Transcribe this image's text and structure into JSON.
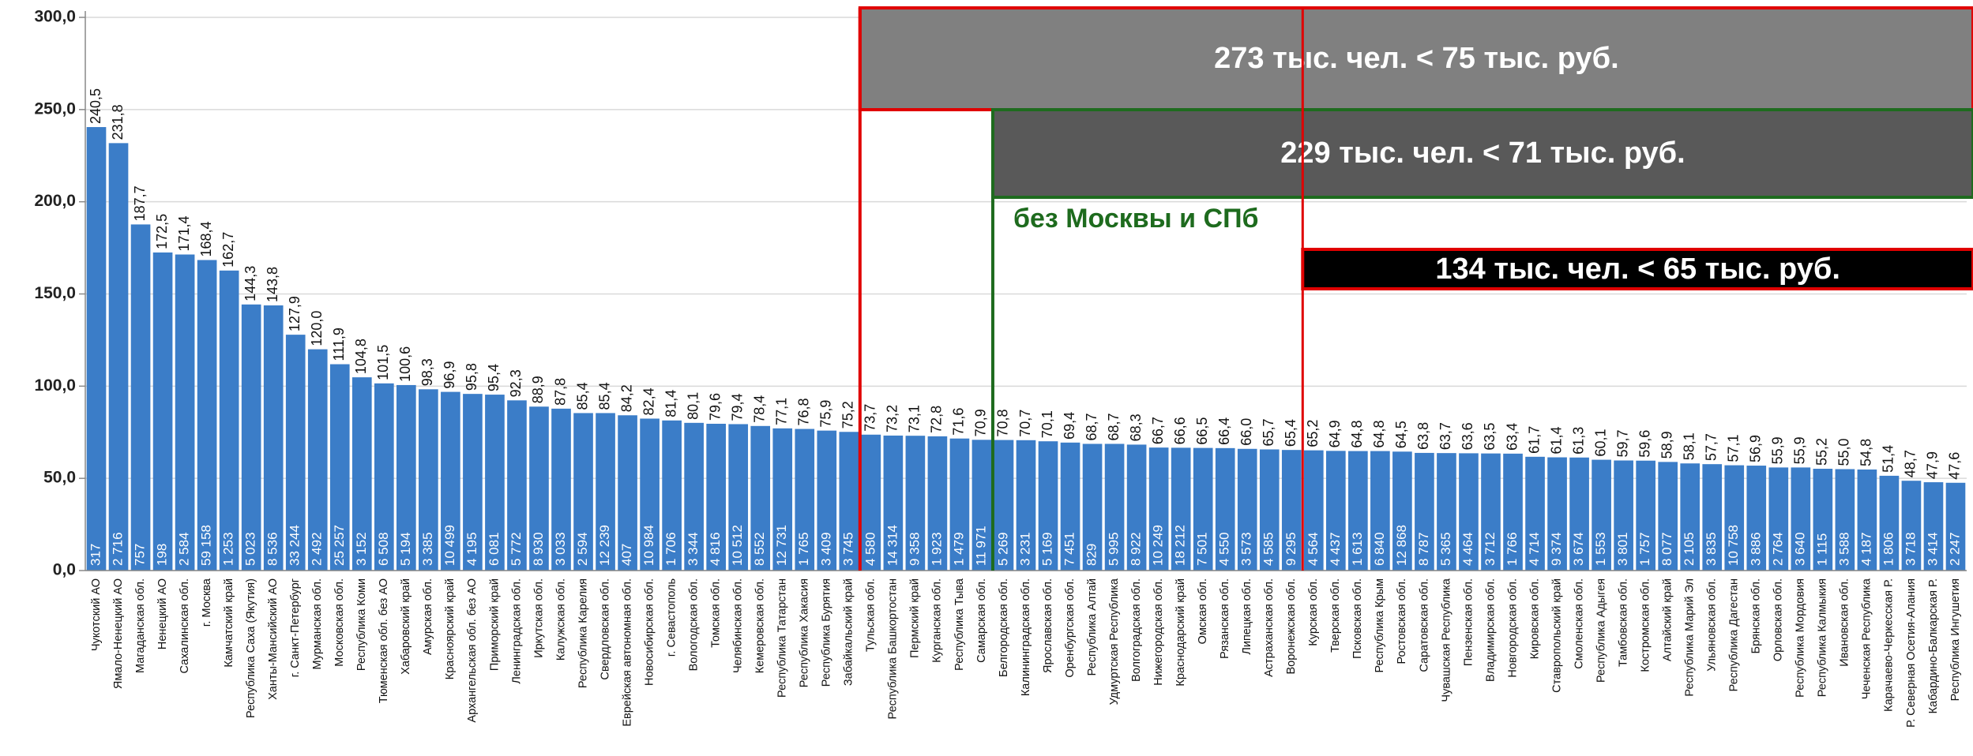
{
  "chart_data": {
    "type": "bar",
    "color": "#3b7dc8",
    "grid": true,
    "ylim": [
      0,
      300
    ],
    "yticks": [
      {
        "value": 0,
        "label": "0,0"
      },
      {
        "value": 50,
        "label": "50,0"
      },
      {
        "value": 100,
        "label": "100,0"
      },
      {
        "value": 150,
        "label": "150,0"
      },
      {
        "value": 200,
        "label": "200,0"
      },
      {
        "value": 250,
        "label": "250,0"
      },
      {
        "value": 300,
        "label": "300,0"
      }
    ],
    "categories": [
      "Чукотский АО",
      "Ямало-Ненецкий АО",
      "Магаданская обл.",
      "Ненецкий АО",
      "Сахалинская обл.",
      "г. Москва",
      "Камчатский край",
      "Республика Саха (Якутия)",
      "Ханты-Мансийский АО",
      "г. Санкт-Петербург",
      "Мурманская обл.",
      "Московская обл.",
      "Республика Коми",
      "Тюменская обл. без АО",
      "Хабаровский край",
      "Амурская обл.",
      "Красноярский край",
      "Архангельская обл. без АО",
      "Приморский край",
      "Ленинградская обл.",
      "Иркутская обл.",
      "Калужская обл.",
      "Республика Карелия",
      "Свердловская обл.",
      "Еврейская автономная обл.",
      "Новосибирская обл.",
      "г. Севастополь",
      "Вологодская обл.",
      "Томская обл.",
      "Челябинская обл.",
      "Кемеровская обл.",
      "Республика Татарстан",
      "Республика Хакасия",
      "Республика Бурятия",
      "Забайкальский край",
      "Тульская обл.",
      "Республика Башкортостан",
      "Пермский край",
      "Курганская обл.",
      "Республика Тыва",
      "Самарская обл.",
      "Белгородская обл.",
      "Калининградская обл.",
      "Ярославская обл.",
      "Оренбургская обл.",
      "Республика Алтай",
      "Удмуртская Республика",
      "Волгоградская обл.",
      "Нижегородская обл.",
      "Краснодарский край",
      "Омская обл.",
      "Рязанская обл.",
      "Липецкая обл.",
      "Астраханская обл.",
      "Воронежская обл.",
      "Курская обл.",
      "Тверская обл.",
      "Псковская обл.",
      "Республика Крым",
      "Ростовская обл.",
      "Саратовская обл.",
      "Чувашская Республика",
      "Пензенская обл.",
      "Владимирская обл.",
      "Новгородская обл.",
      "Кировская обл.",
      "Ставропольский край",
      "Смоленская обл.",
      "Республика Адыгея",
      "Тамбовская обл.",
      "Костромская обл.",
      "Алтайский край",
      "Республика Марий Эл",
      "Ульяновская обл.",
      "Республика Дагестан",
      "Брянская обл.",
      "Орловская обл.",
      "Республика Мордовия",
      "Республика Калмыкия",
      "Ивановская обл.",
      "Чеченская Республика",
      "Карачаево-Черкесская Р.",
      "Р. Северная Осетия-Алания",
      "Кабардино-Балкарская Р.",
      "Республика Ингушетия"
    ],
    "values": [
      240.5,
      231.8,
      187.7,
      172.5,
      171.4,
      168.4,
      162.7,
      144.3,
      143.8,
      127.9,
      120.0,
      111.9,
      104.8,
      101.5,
      100.6,
      98.3,
      96.9,
      95.8,
      95.4,
      92.3,
      88.9,
      87.8,
      85.4,
      85.4,
      84.2,
      82.4,
      81.4,
      80.1,
      79.6,
      79.4,
      78.4,
      77.1,
      76.8,
      75.9,
      75.2,
      73.7,
      73.2,
      73.1,
      72.8,
      71.6,
      70.9,
      70.8,
      70.7,
      70.1,
      69.4,
      68.7,
      68.7,
      68.3,
      66.7,
      66.6,
      66.5,
      66.4,
      66.0,
      65.7,
      65.4,
      65.2,
      64.9,
      64.8,
      64.8,
      64.5,
      63.8,
      63.7,
      63.6,
      63.5,
      63.4,
      61.7,
      61.4,
      61.3,
      60.1,
      59.7,
      59.6,
      58.9,
      58.1,
      57.7,
      57.1,
      56.9,
      55.9,
      55.9,
      55.2,
      55.0,
      54.8,
      51.4,
      48.7,
      47.9,
      47.6
    ],
    "value_labels": [
      "240,5",
      "231,8",
      "187,7",
      "172,5",
      "171,4",
      "168,4",
      "162,7",
      "144,3",
      "143,8",
      "127,9",
      "120,0",
      "111,9",
      "104,8",
      "101,5",
      "100,6",
      "98,3",
      "96,9",
      "95,8",
      "95,4",
      "92,3",
      "88,9",
      "87,8",
      "85,4",
      "85,4",
      "84,2",
      "82,4",
      "81,4",
      "80,1",
      "79,6",
      "79,4",
      "78,4",
      "77,1",
      "76,8",
      "75,9",
      "75,2",
      "73,7",
      "73,2",
      "73,1",
      "72,8",
      "71,6",
      "70,9",
      "70,8",
      "70,7",
      "70,1",
      "69,4",
      "68,7",
      "68,7",
      "68,3",
      "66,7",
      "66,6",
      "66,5",
      "66,4",
      "66,0",
      "65,7",
      "65,4",
      "65,2",
      "64,9",
      "64,8",
      "64,8",
      "64,5",
      "63,8",
      "63,7",
      "63,6",
      "63,5",
      "63,4",
      "61,7",
      "61,4",
      "61,3",
      "60,1",
      "59,7",
      "59,6",
      "58,9",
      "58,1",
      "57,7",
      "57,1",
      "56,9",
      "55,9",
      "55,9",
      "55,2",
      "55,0",
      "54,8",
      "51,4",
      "48,7",
      "47,9",
      "47,6"
    ],
    "count_labels": [
      "317",
      "2 716",
      "757",
      "198",
      "2 584",
      "59 158",
      "1 253",
      "5 023",
      "8 536",
      "33 244",
      "2 492",
      "25 257",
      "3 152",
      "6 508",
      "5 194",
      "3 385",
      "10 499",
      "4 195",
      "6 081",
      "5 772",
      "8 930",
      "3 033",
      "2 594",
      "12 239",
      "407",
      "10 984",
      "1 706",
      "3 344",
      "4 816",
      "10 512",
      "8 552",
      "12 731",
      "1 765",
      "3 409",
      "3 745",
      "4 580",
      "14 314",
      "9 358",
      "1 923",
      "1 479",
      "11 971",
      "5 269",
      "3 231",
      "5 169",
      "7 451",
      "829",
      "5 995",
      "8 922",
      "10 249",
      "18 212",
      "7 501",
      "4 550",
      "3 573",
      "4 585",
      "9 295",
      "4 564",
      "4 437",
      "1 613",
      "6 840",
      "12 868",
      "8 787",
      "5 365",
      "4 464",
      "3 712",
      "1 766",
      "4 714",
      "9 374",
      "3 674",
      "1 553",
      "3 801",
      "1 757",
      "8 077",
      "2 105",
      "3 835",
      "10 758",
      "3 886",
      "2 764",
      "3 640",
      "1 115",
      "3 588",
      "4 187",
      "1 806",
      "3 718",
      "3 414",
      "2 247"
    ],
    "annotations": [
      "273 тыс. чел. < 75 тыс. руб.",
      "229 тыс. чел. < 71 тыс. руб.",
      "без Москвы и СПб",
      "134 тыс. чел. < 65 тыс. руб."
    ]
  }
}
